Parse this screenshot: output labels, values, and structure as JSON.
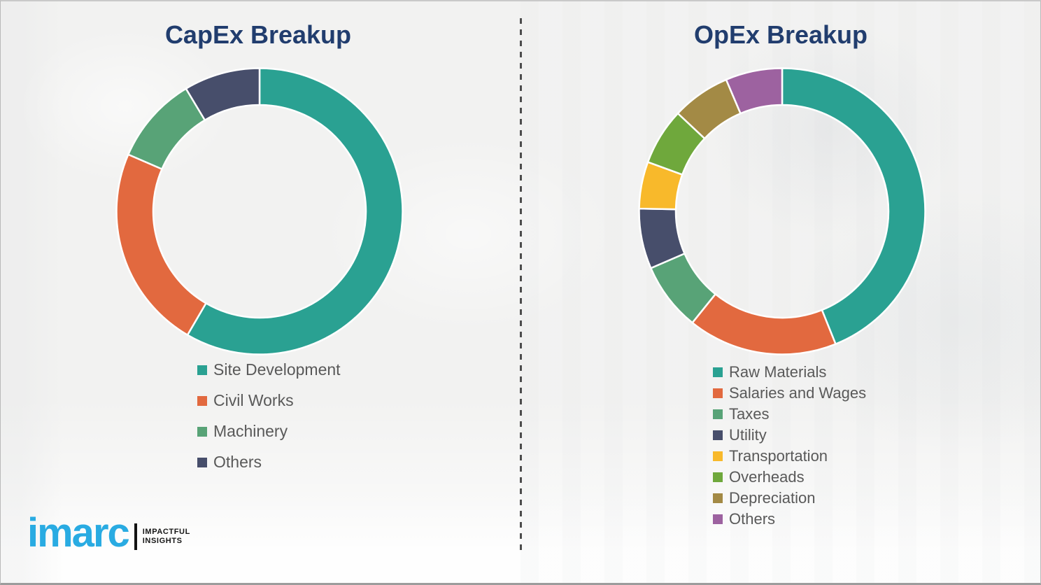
{
  "chart_data": [
    {
      "type": "pie",
      "subtype": "donut",
      "title": "CapEx Breakup",
      "labels": [
        "Site Development",
        "Civil Works",
        "Machinery",
        "Others"
      ],
      "values": [
        58.4,
        23.1,
        9.9,
        8.6
      ],
      "unit": "percent_estimated",
      "colors": [
        "#2aa192",
        "#e2693f",
        "#58a377",
        "#474e6b"
      ],
      "start_angle_deg": 0,
      "direction": "clockwise",
      "legend_position": "below-left",
      "title_color": "#213d6e",
      "legend_text_color": "#595959",
      "segment_gap_color": "#ffffff"
    },
    {
      "type": "pie",
      "subtype": "donut",
      "title": "OpEx Breakup",
      "labels": [
        "Raw Materials",
        "Salaries and Wages",
        "Taxes",
        "Utility",
        "Transportation",
        "Overheads",
        "Depreciation",
        "Others"
      ],
      "values": [
        43.9,
        16.9,
        7.7,
        6.8,
        5.3,
        6.4,
        6.6,
        6.4
      ],
      "unit": "percent_estimated",
      "colors": [
        "#2aa192",
        "#e2693f",
        "#58a377",
        "#474e6b",
        "#f8b92b",
        "#6fa83c",
        "#a38a45",
        "#9d62a0"
      ],
      "start_angle_deg": 0,
      "direction": "clockwise",
      "legend_position": "below-left",
      "title_color": "#213d6e",
      "legend_text_color": "#595959",
      "segment_gap_color": "#ffffff"
    }
  ],
  "logo": {
    "brand": "imarc",
    "tagline_line1": "IMPACTFUL",
    "tagline_line2": "INSIGHTS",
    "brand_color": "#29abe2"
  }
}
